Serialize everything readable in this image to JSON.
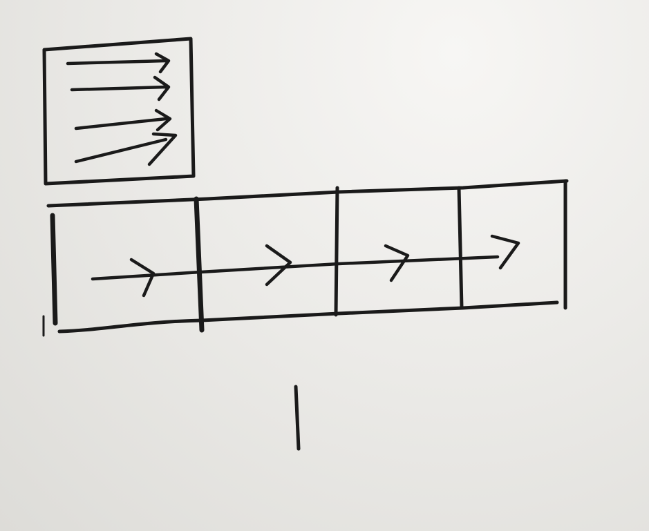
{
  "diagram": {
    "colors": {
      "paper": "#ecebe8",
      "ink": "#1a1a1a"
    },
    "top_box": {
      "description_icon": "hand-drawn-box-with-stacked-arrows",
      "arrow_count": 4
    },
    "strip": {
      "cell_count": 4,
      "arrow_count": 4
    },
    "stroke": {
      "description_icon": "single-vertical-tally-mark"
    }
  }
}
